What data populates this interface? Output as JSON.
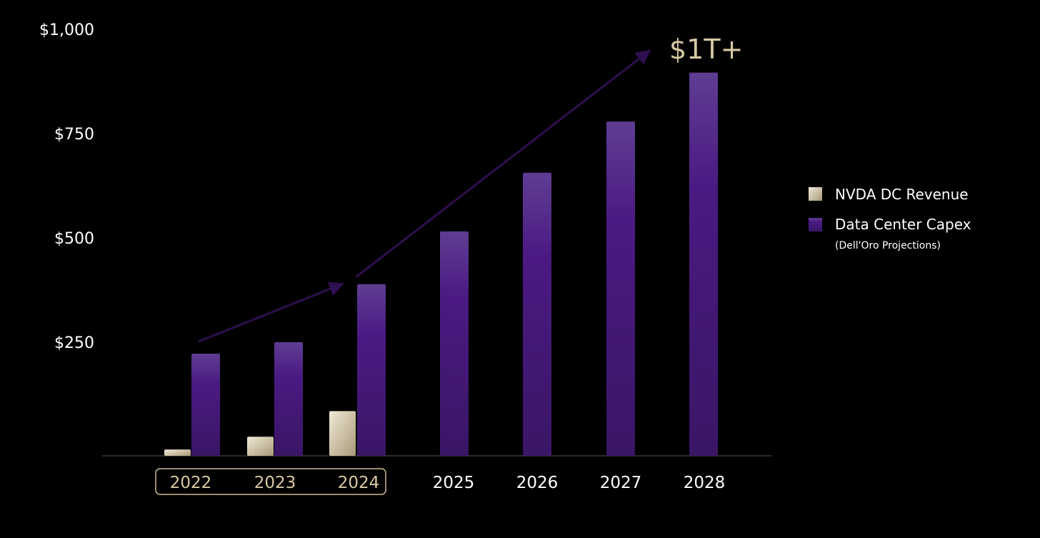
{
  "colors": {
    "background": "#000000",
    "revenue_light": "#f1ead6",
    "revenue_dark": "#a8997a",
    "capex_top": "#5f3d93",
    "capex_mid": "#4a1a82",
    "capex_bottom": "#3a1666",
    "arrow": "#2e0f4f",
    "gold_text": "#d7c9a3",
    "highlight_box": "#cbbd95",
    "axis_line": "#555555"
  },
  "chart_data": {
    "type": "bar",
    "title": "",
    "xlabel": "",
    "ylabel": "",
    "ylim": [
      0,
      1000
    ],
    "yticks": [
      {
        "value": 250,
        "label": "$250"
      },
      {
        "value": 500,
        "label": "$500"
      },
      {
        "value": 750,
        "label": "$750"
      },
      {
        "value": 1000,
        "label": "$1,000"
      }
    ],
    "categories": [
      "2022",
      "2023",
      "2024",
      "2025",
      "2026",
      "2027",
      "2028"
    ],
    "highlighted_categories": [
      "2022",
      "2023",
      "2024"
    ],
    "series": [
      {
        "name": "NVDA DC Revenue",
        "values": [
          15,
          45,
          105,
          null,
          null,
          null,
          null
        ]
      },
      {
        "name": "Data Center Capex",
        "subtitle": "(Dell'Oro Projections)",
        "values": [
          240,
          267,
          403,
          527,
          665,
          785,
          900
        ]
      }
    ],
    "annotations": [
      {
        "text": "$1T+",
        "type": "arrow-callout"
      }
    ],
    "legend_position": "right"
  }
}
